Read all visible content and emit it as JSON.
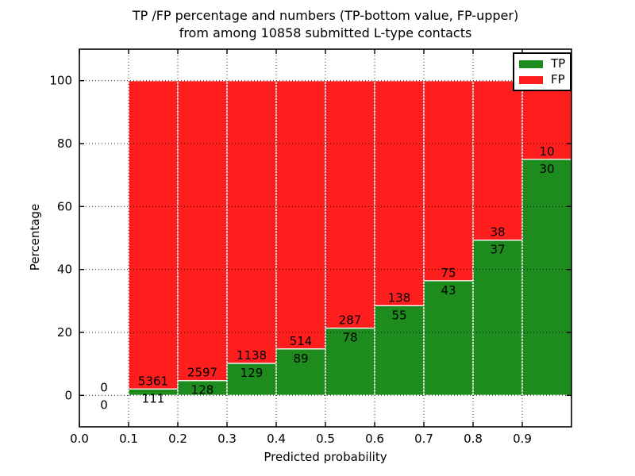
{
  "chart_data": {
    "type": "bar",
    "stacked": true,
    "title_lines": [
      "TP /FP percentage and numbers (TP-bottom value, FP-upper)",
      "from among 10858 submitted L-type contacts"
    ],
    "xlabel": "Predicted probability",
    "ylabel": "Percentage",
    "xlim": [
      0,
      1
    ],
    "ylim": [
      -10,
      110
    ],
    "xtick_values": [
      0,
      0.1,
      0.2,
      0.3,
      0.4,
      0.5,
      0.6,
      0.7,
      0.8,
      0.9
    ],
    "xtick_labels": [
      "0.0",
      "0.1",
      "0.2",
      "0.3",
      "0.4",
      "0.5",
      "0.6",
      "0.7",
      "0.8",
      "0.9"
    ],
    "ytick_values": [
      0,
      20,
      40,
      60,
      80,
      100
    ],
    "ytick_labels": [
      "0",
      "20",
      "40",
      "60",
      "80",
      "100"
    ],
    "grid": "dotted",
    "bar_edge_color": "#ffffff",
    "legend": {
      "position": "upper-right",
      "entries": [
        {
          "label": "TP",
          "color": "#1e8b1e"
        },
        {
          "label": "FP",
          "color": "#ff1e1e"
        }
      ]
    },
    "bins": [
      {
        "x0": 0.0,
        "x1": 0.1,
        "tp": 0,
        "fp": 0
      },
      {
        "x0": 0.1,
        "x1": 0.2,
        "tp": 111,
        "fp": 5361
      },
      {
        "x0": 0.2,
        "x1": 0.3,
        "tp": 128,
        "fp": 2597
      },
      {
        "x0": 0.3,
        "x1": 0.4,
        "tp": 129,
        "fp": 1138
      },
      {
        "x0": 0.4,
        "x1": 0.5,
        "tp": 89,
        "fp": 514
      },
      {
        "x0": 0.5,
        "x1": 0.6,
        "tp": 78,
        "fp": 287
      },
      {
        "x0": 0.6,
        "x1": 0.7,
        "tp": 55,
        "fp": 138
      },
      {
        "x0": 0.7,
        "x1": 0.8,
        "tp": 43,
        "fp": 75
      },
      {
        "x0": 0.8,
        "x1": 0.9,
        "tp": 37,
        "fp": 38
      },
      {
        "x0": 0.9,
        "x1": 1.0,
        "tp": 30,
        "fp": 10
      }
    ]
  }
}
